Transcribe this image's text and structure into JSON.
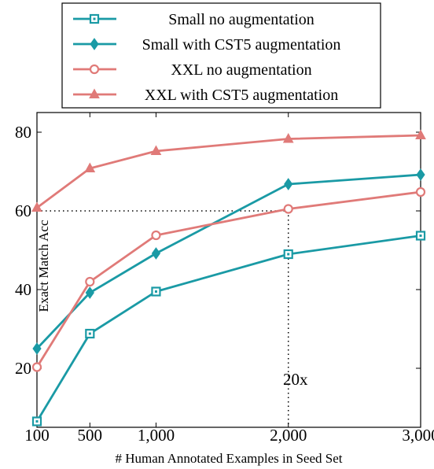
{
  "chart_data": {
    "type": "line",
    "x": [
      100,
      500,
      1000,
      2000,
      3000
    ],
    "x_tick_labels": [
      "100",
      "500",
      "1,000",
      "2,000",
      "3,000"
    ],
    "y_ticks": [
      20,
      40,
      60,
      80
    ],
    "ylim": [
      5,
      85
    ],
    "xlim": [
      100,
      3000
    ],
    "xlabel": "# Human Annotated Examples in Seed Set",
    "ylabel": "Exact Match Acc",
    "grid": false,
    "legend_position": "top",
    "series": [
      {
        "name": "Small no augmentation",
        "color": "#1a9aa5",
        "marker": "square",
        "values": [
          6.5,
          28.8,
          39.5,
          49,
          53.7
        ]
      },
      {
        "name": "Small with CST5 augmentation",
        "color": "#1a9aa5",
        "marker": "diamond",
        "values": [
          25,
          39.2,
          49.2,
          66.8,
          69.2
        ]
      },
      {
        "name": "XXL no augmentation",
        "color": "#e07a78",
        "marker": "circle",
        "values": [
          20.3,
          42,
          53.8,
          60.5,
          64.8
        ]
      },
      {
        "name": "XXL with CST5 augmentation",
        "color": "#e07a78",
        "marker": "triangle",
        "values": [
          60.8,
          70.8,
          75.2,
          78.3,
          79.2
        ]
      }
    ],
    "annotations": [
      {
        "text": "20x",
        "reference_y": 60,
        "from_x": 100,
        "to_x": 2000
      }
    ]
  }
}
